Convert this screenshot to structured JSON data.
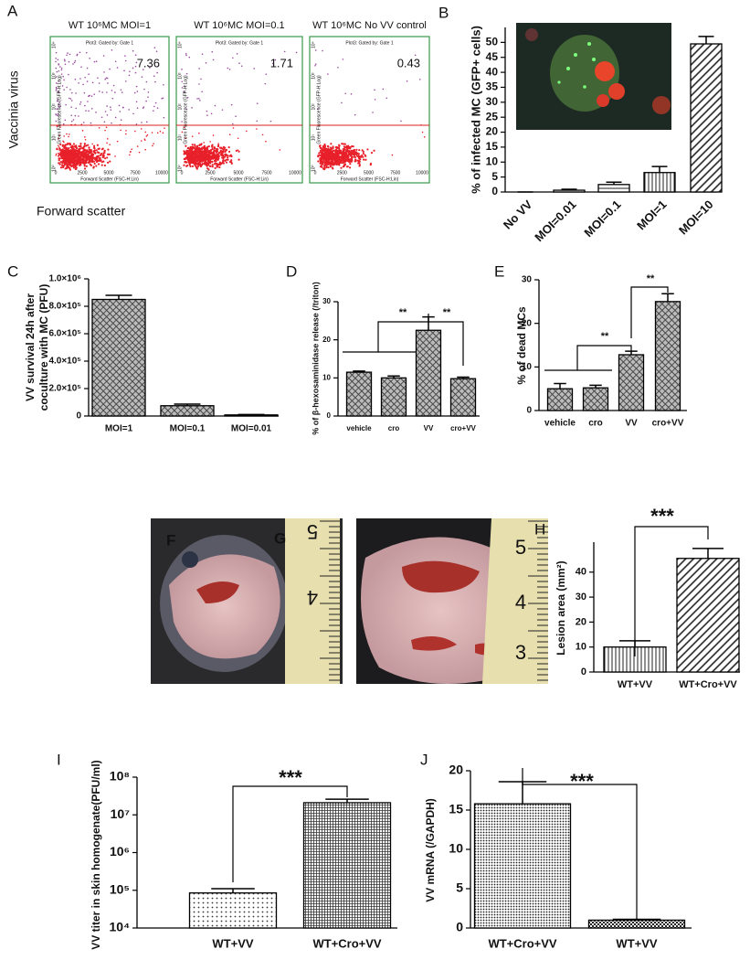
{
  "flow": {
    "panel": "A",
    "ylabel": "Vaccinia virus",
    "xlabel": "Forward scatter",
    "plot_xlabel": "Forward Scatter (FSC-H:Lin)",
    "plot_ylabel": "Green Fluorescence (GFP-H:Log)",
    "plot_xticks": [
      "0",
      "2500",
      "5000",
      "7500",
      "10000"
    ],
    "plot_yticks": [
      "10⁰",
      "10¹",
      "10²",
      "10³",
      "10⁴"
    ],
    "plots": [
      {
        "title": "WT 10⁶MC  MOI=1",
        "gate": "Plot3: Gated by: Gate 1",
        "value": "7.36"
      },
      {
        "title": "WT 10⁶MC  MOI=0.1",
        "gate": "Plot3: Gated by: Gate 1",
        "value": "1.71"
      },
      {
        "title": "WT 10⁶MC  No VV control",
        "gate": "Plot3: Gated by: Gate 1",
        "value": "0.43"
      }
    ]
  },
  "photos": [
    {
      "panel": "F",
      "ruler": [
        "5",
        "4"
      ]
    },
    {
      "panel": "G",
      "ruler": [
        "5",
        "4",
        "3"
      ]
    }
  ],
  "chart_data": [
    {
      "type": "bar",
      "panel": "B",
      "ylabel": "% of infected MC (GFP+ cells)",
      "categories": [
        "No VV",
        "MOI=0.01",
        "MOI=0.1",
        "MOI=1",
        "MOI=10"
      ],
      "values": [
        0,
        0.6,
        2.5,
        6.5,
        49.5
      ],
      "errors": [
        0,
        0.3,
        0.8,
        2,
        2.5
      ],
      "patterns": [
        "none",
        "dots",
        "hlines",
        "vlines",
        "diag"
      ],
      "ylim": [
        0,
        55
      ],
      "yticks": [
        0,
        5,
        10,
        15,
        20,
        25,
        30,
        35,
        40,
        45,
        50
      ]
    },
    {
      "type": "bar",
      "panel": "C",
      "ylabel": [
        "VV survival 24h after",
        "coculture with MC (PFU)"
      ],
      "categories": [
        "MOI=1",
        "MOI=0.1",
        "MOI=0.01"
      ],
      "values": [
        850000,
        75000,
        8000
      ],
      "errors": [
        30000,
        12000,
        3000
      ],
      "patterns": [
        "cross",
        "cross",
        "cross"
      ],
      "ylim": [
        0,
        1000000
      ],
      "yticks": [
        0,
        {
          "value": 200000,
          "label": "2.0×10⁵"
        },
        {
          "value": 400000,
          "label": "4.0×10⁵"
        },
        {
          "value": 600000,
          "label": "6.0×10⁵"
        },
        {
          "value": 800000,
          "label": "8.0×10⁵"
        },
        {
          "value": 1000000,
          "label": "1.0×10⁶"
        }
      ]
    },
    {
      "type": "bar",
      "panel": "D",
      "ylabel": "% of β-hexosaminidase release (/triton)",
      "categories": [
        "vehicle",
        "cro",
        "VV",
        "cro+VV"
      ],
      "values": [
        11.5,
        10,
        22.5,
        9.8
      ],
      "errors": [
        0.3,
        0.5,
        3.5,
        0.4
      ],
      "patterns": [
        "cross",
        "cross",
        "cross",
        "cross"
      ],
      "annotations": [
        "**",
        "**"
      ],
      "ylim": [
        0,
        30
      ],
      "yticks": [
        0,
        10,
        20,
        30
      ]
    },
    {
      "type": "bar",
      "panel": "E",
      "ylabel": "% of dead MCs",
      "categories": [
        "vehicle",
        "cro",
        "VV",
        "cro+VV"
      ],
      "values": [
        5,
        5.2,
        12.8,
        25
      ],
      "errors": [
        1.2,
        0.6,
        0.8,
        1.8
      ],
      "patterns": [
        "cross",
        "cross",
        "cross",
        "cross"
      ],
      "annotations": [
        "**",
        "**"
      ],
      "ylim": [
        0,
        30
      ],
      "yticks": [
        0,
        10,
        20,
        30
      ]
    },
    {
      "type": "bar",
      "panel": "H",
      "ylabel": "Lesion area (mm²)",
      "categories": [
        "WT+VV",
        "WT+Cro+VV"
      ],
      "values": [
        10,
        45.5
      ],
      "errors": [
        2.5,
        4
      ],
      "patterns": [
        "vlines",
        "diag"
      ],
      "annotations": [
        "***"
      ],
      "ylim": [
        0,
        52
      ],
      "yticks": [
        0,
        10,
        20,
        30,
        40
      ]
    },
    {
      "type": "bar",
      "panel": "I",
      "ylabel": "VV titer in skin homogenate(PFU/ml)",
      "categories": [
        "WT+VV",
        "WT+Cro+VV"
      ],
      "values": [
        85000,
        21000000
      ],
      "errors": [
        25000,
        5000000
      ],
      "patterns": [
        "dots",
        "grid"
      ],
      "annotations": [
        "***"
      ],
      "log_scale": true,
      "ylim": [
        10000,
        100000000
      ],
      "yticks": [
        {
          "value": 10000,
          "label": "10⁴"
        },
        {
          "value": 100000,
          "label": "10⁵"
        },
        {
          "value": 1000000,
          "label": "10⁶"
        },
        {
          "value": 10000000,
          "label": "10⁷"
        },
        {
          "value": 100000000,
          "label": "10⁸"
        }
      ]
    },
    {
      "type": "bar",
      "panel": "J",
      "ylabel": "VV mRNA  (/GAPDH)",
      "categories": [
        "WT+Cro+VV",
        "WT+VV"
      ],
      "values": [
        15.8,
        1
      ],
      "errors": [
        2.8,
        0.1
      ],
      "patterns": [
        "densedots",
        "checker"
      ],
      "annotations": [
        "***"
      ],
      "ylim": [
        0,
        20
      ],
      "yticks": [
        0,
        5,
        10,
        15,
        20
      ]
    }
  ]
}
